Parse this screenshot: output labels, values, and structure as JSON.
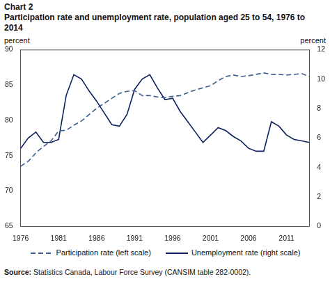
{
  "chart_data": {
    "type": "line",
    "title": "Chart 2",
    "subtitle": "Participation rate and unemployment rate, population aged 25 to 54, 1976 to 2014",
    "ylabel": "percent",
    "y2label": "percent",
    "source": "Source: Statistics Canada, Labour Force Survey (CANSIM table 282-0002).",
    "x": [
      1976,
      1977,
      1978,
      1979,
      1980,
      1981,
      1982,
      1983,
      1984,
      1985,
      1986,
      1987,
      1988,
      1989,
      1990,
      1991,
      1992,
      1993,
      1994,
      1995,
      1996,
      1997,
      1998,
      1999,
      2000,
      2001,
      2002,
      2003,
      2004,
      2005,
      2006,
      2007,
      2008,
      2009,
      2010,
      2011,
      2012,
      2013,
      2014
    ],
    "xlim": [
      1976,
      2014
    ],
    "xticks": [
      1976,
      1981,
      1986,
      1991,
      1996,
      2001,
      2006,
      2011
    ],
    "ylim": [
      65,
      90
    ],
    "yticks": [
      65,
      70,
      75,
      80,
      85,
      90
    ],
    "y2lim": [
      0,
      12
    ],
    "y2ticks": [
      0,
      2,
      4,
      6,
      8,
      10,
      12
    ],
    "grid": false,
    "legend": "bottom",
    "series": [
      {
        "name": "Participation rate (left scale)",
        "color": "#3d5f91",
        "line_style": "dashed",
        "values": [
          73.5,
          74.2,
          75.4,
          76.3,
          77.1,
          78.5,
          78.6,
          79.3,
          79.9,
          80.8,
          81.7,
          82.4,
          83.1,
          83.8,
          84.1,
          84.2,
          83.5,
          83.5,
          83.3,
          83.2,
          83.4,
          83.5,
          83.9,
          84.3,
          84.6,
          84.9,
          85.6,
          86.2,
          86.4,
          86.2,
          86.3,
          86.5,
          86.7,
          86.5,
          86.5,
          86.4,
          86.5,
          86.6,
          86.2
        ]
      },
      {
        "name": "Unemployment rate (right scale)",
        "color": "#0d1f5e",
        "line_style": "solid",
        "axis": "y2",
        "values": [
          5.3,
          6.0,
          6.4,
          5.7,
          5.7,
          5.9,
          8.9,
          10.3,
          10.0,
          9.2,
          8.5,
          7.7,
          6.9,
          6.8,
          7.6,
          9.3,
          10.0,
          10.3,
          9.4,
          8.6,
          8.7,
          7.8,
          7.1,
          6.4,
          5.7,
          6.2,
          6.7,
          6.5,
          6.1,
          5.8,
          5.3,
          5.1,
          5.1,
          7.1,
          6.8,
          6.2,
          5.9,
          5.8,
          5.7
        ]
      }
    ]
  }
}
